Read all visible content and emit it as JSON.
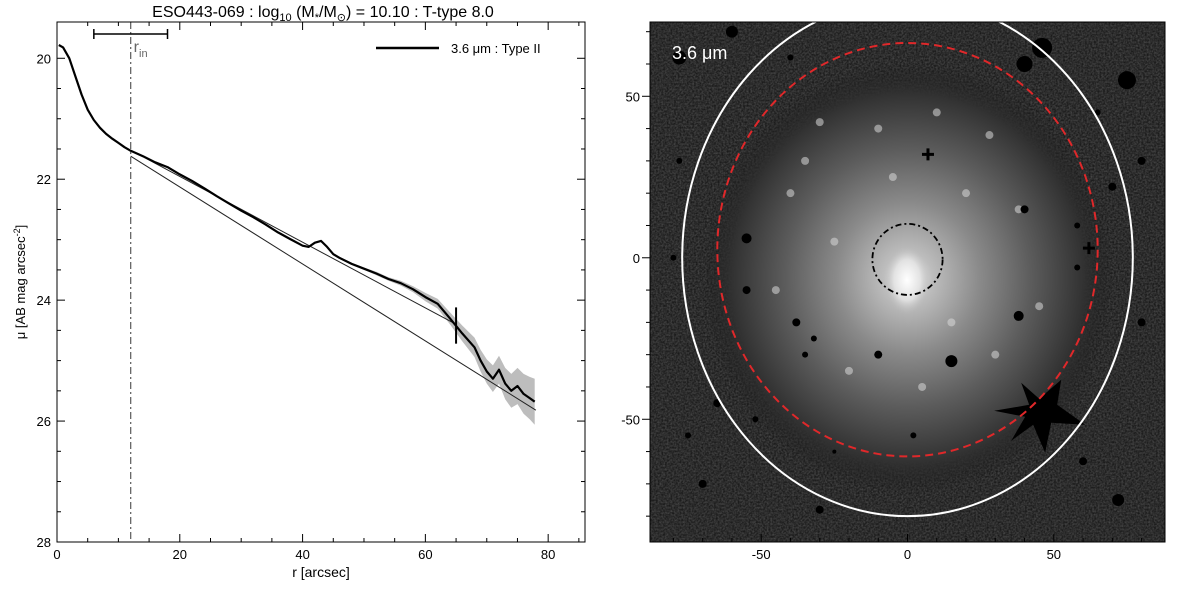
{
  "colors": {
    "profile": "#000000",
    "fit_line": "#222222",
    "error_band": "#bdbdbd",
    "rin_line": "#666666",
    "ellipse_outer": "#ffffff",
    "ellipse_dashed": "#e0282a",
    "image_label": "#ffffff"
  },
  "chart_data": [
    {
      "type": "line",
      "title": {
        "galaxy": "ESO443-069",
        "mass_label": "log",
        "mass_sub": "10",
        "mass_ratio": "(M",
        "star_sub": "*",
        "ratio_slash": "/M",
        "sun_sub": "⊙",
        "mass_value": ") = 10.10",
        "ttype": "T-type 8.0",
        "separator": " : "
      },
      "xlabel": "r [arcsec]",
      "ylabel": "μ [AB mag arcsec",
      "ylabel_sup": "-2",
      "ylabel_end": "]",
      "xlim": [
        0,
        86
      ],
      "ylim": [
        28,
        19.4
      ],
      "y_inverted": true,
      "xticks": [
        0,
        20,
        40,
        60,
        80
      ],
      "yticks": [
        20,
        22,
        24,
        26,
        28
      ],
      "legend": {
        "position": "top-right",
        "entries": [
          {
            "label": "3.6 μm : Type II"
          }
        ]
      },
      "rin": {
        "label": "r",
        "label_sub": "in",
        "x": 12,
        "bar_range": [
          6,
          18
        ]
      },
      "break_radius": 65,
      "series": [
        {
          "name": "3.6 μm : Type II",
          "x": [
            0.3,
            1,
            2,
            3,
            4,
            5,
            6,
            7,
            8,
            9,
            10,
            11,
            12,
            14,
            16,
            18,
            20,
            22,
            24,
            26,
            28,
            30,
            32,
            34,
            36,
            38,
            40,
            41,
            42,
            43,
            44,
            45,
            46,
            48,
            50,
            52,
            54,
            56,
            58,
            60,
            62,
            64,
            66,
            68,
            69,
            70,
            71,
            72,
            73,
            74,
            75,
            76,
            77,
            77.8
          ],
          "y": [
            19.78,
            19.82,
            20.0,
            20.3,
            20.6,
            20.85,
            21.02,
            21.15,
            21.25,
            21.33,
            21.4,
            21.47,
            21.53,
            21.62,
            21.72,
            21.8,
            21.92,
            22.03,
            22.15,
            22.28,
            22.4,
            22.52,
            22.63,
            22.75,
            22.88,
            22.99,
            23.1,
            23.12,
            23.05,
            23.02,
            23.12,
            23.24,
            23.3,
            23.4,
            23.48,
            23.56,
            23.65,
            23.72,
            23.82,
            23.95,
            24.06,
            24.3,
            24.55,
            24.78,
            25.0,
            25.18,
            25.3,
            25.15,
            25.38,
            25.5,
            25.42,
            25.55,
            25.62,
            25.68
          ],
          "error_upper": [
            19.78,
            19.82,
            20.0,
            20.3,
            20.6,
            20.85,
            21.02,
            21.15,
            21.25,
            21.33,
            21.4,
            21.47,
            21.52,
            21.61,
            21.71,
            21.79,
            21.91,
            22.02,
            22.14,
            22.27,
            22.39,
            22.51,
            22.62,
            22.74,
            22.87,
            22.98,
            23.09,
            23.11,
            23.04,
            23.01,
            23.11,
            23.22,
            23.28,
            23.38,
            23.46,
            23.53,
            23.62,
            23.68,
            23.77,
            23.88,
            23.98,
            24.2,
            24.42,
            24.62,
            24.82,
            24.98,
            25.08,
            24.92,
            25.12,
            25.22,
            25.12,
            25.22,
            25.27,
            25.3
          ],
          "error_lower": [
            19.78,
            19.82,
            20.0,
            20.3,
            20.6,
            20.85,
            21.02,
            21.15,
            21.25,
            21.33,
            21.4,
            21.47,
            21.54,
            21.63,
            21.73,
            21.81,
            21.93,
            22.04,
            22.16,
            22.29,
            22.41,
            22.53,
            22.64,
            22.76,
            22.89,
            23.0,
            23.11,
            23.13,
            23.06,
            23.03,
            23.13,
            23.26,
            23.32,
            23.42,
            23.5,
            23.59,
            23.68,
            23.76,
            23.87,
            24.02,
            24.14,
            24.4,
            24.68,
            24.94,
            25.18,
            25.38,
            25.52,
            25.38,
            25.64,
            25.78,
            25.72,
            25.88,
            25.97,
            26.06
          ]
        },
        {
          "x": [
            12,
            65
          ],
          "y": [
            21.52,
            24.4
          ]
        },
        {
          "x": [
            12,
            78
          ],
          "y": [
            21.62,
            25.82
          ]
        }
      ]
    },
    {
      "type": "heatmap",
      "image_label": "3.6 μm",
      "xlim": [
        -88,
        88
      ],
      "ylim": [
        -88,
        73
      ],
      "xticks": [
        -50,
        0,
        50
      ],
      "yticks": [
        -50,
        0,
        50
      ],
      "ellipses": [
        {
          "style": "solid",
          "x": 0,
          "y": 0,
          "a": 77,
          "b": 80
        },
        {
          "style": "dashed",
          "x": 0,
          "y": 2.5,
          "a": 65,
          "b": 64
        },
        {
          "style": "dash-dot",
          "x": 0,
          "y": -0.5,
          "a": 12,
          "b": 11
        }
      ]
    }
  ]
}
